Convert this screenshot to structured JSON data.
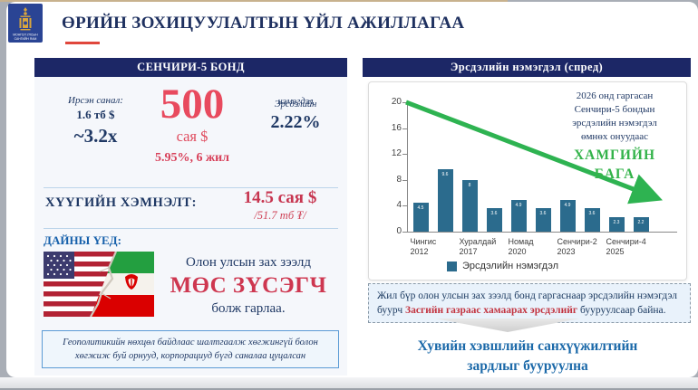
{
  "slide": {
    "title": "ӨРИЙН ЗОХИЦУУЛАЛТЫН ҮЙЛ АЖИЛЛАГАА",
    "logo_caption_line1": "МОНГОЛ УЛСЫН",
    "logo_caption_line2": "САНГИЙН ЯАМ"
  },
  "left_panel": {
    "header": "СЕНЧИРИ-5 БОНД",
    "offers_label": "Ирсэн санал:",
    "offers_value": "1.6 тб $",
    "offers_multiple": "~3.2x",
    "amount": "500",
    "amount_unit": "сая $",
    "amount_terms": "5.95%, 6 жил",
    "spread_label_a": "нэмэгдэл",
    "spread_label_b": "Эрсдэлийн",
    "spread_value": "2.22%",
    "savings_label": "ХҮҮГИЙН ХЭМНЭЛТ:",
    "savings_value": "14.5 сая $",
    "savings_sub": "/51.7 тб ₮/",
    "war_label": "ДАЙНЫ ҮЕД:",
    "war_line1": "Олон улсын зах зээлд",
    "war_highlight": "МӨС ЗҮСЭГЧ",
    "war_line2": "болж гарлаа.",
    "note": "Геополитикийн нөхцөл байдлаас шалтгаалж хөгжингүй болон хөгжиж буй орнууд, корпорациуд бүгд саналаа цуцалсан"
  },
  "right_panel": {
    "header": "Эрсдэлийн нэмэгдэл (спред)",
    "annotation": [
      "2026 онд гаргасан",
      "Сенчири-5 бондын",
      "эрсдэлийн нэмэгдэл",
      "өмнөх онуудаас"
    ],
    "annotation_highlight": "ХАМГИЙН\nБАГА",
    "callout_line1": "Жил бүр олон улсын зах зээлд бонд гаргаснаар эрсдэлийн нэмэгдэл буурч ",
    "callout_highlight": "Засгийн газраас хамаарах эрсдэлийг ",
    "callout_line2": "бууруулсаар байна.",
    "conclusion_line1": "Хувийн хэвшлийн санхүүжилтийн",
    "conclusion_line2": "зардлыг бууруулна"
  },
  "chart_data": {
    "type": "bar",
    "title": "Эрсдэлийн нэмэгдэл (спред)",
    "values": [
      4.5,
      9.6,
      8.0,
      3.6,
      4.9,
      3.6,
      4.9,
      3.6,
      2.3,
      2.2
    ],
    "bar_labels": [
      "4.5",
      "9.6",
      "8",
      "3.6",
      "4.9",
      "3.6",
      "4.9",
      "3.6",
      "2.3",
      "2.2"
    ],
    "x_labels": [
      {
        "line1": "Чингис",
        "line2": "2012",
        "bar_index": 0
      },
      {
        "line1": "Хуралдай",
        "line2": "2017",
        "bar_index": 2
      },
      {
        "line1": "Номад",
        "line2": "2020",
        "bar_index": 4
      },
      {
        "line1": "Сенчири-2",
        "line2": "2023",
        "bar_index": 6
      },
      {
        "line1": "Сенчири-4",
        "line2": "2025",
        "bar_index": 8
      }
    ],
    "yticks": [
      0,
      4,
      8,
      12,
      16,
      20
    ],
    "ylim": [
      0,
      20
    ],
    "legend": [
      "Эрсдэлийн нэмэгдэл"
    ],
    "legend_position": "bottom",
    "grid": false,
    "bar_color": "#2b6b8d",
    "trend": {
      "direction": "down",
      "color": "#2eb351"
    }
  },
  "colors": {
    "header_band": "#1c2766",
    "accent_red": "#e84a5e",
    "accent_green": "#33b34a",
    "bar_teal": "#2b6b8d"
  }
}
